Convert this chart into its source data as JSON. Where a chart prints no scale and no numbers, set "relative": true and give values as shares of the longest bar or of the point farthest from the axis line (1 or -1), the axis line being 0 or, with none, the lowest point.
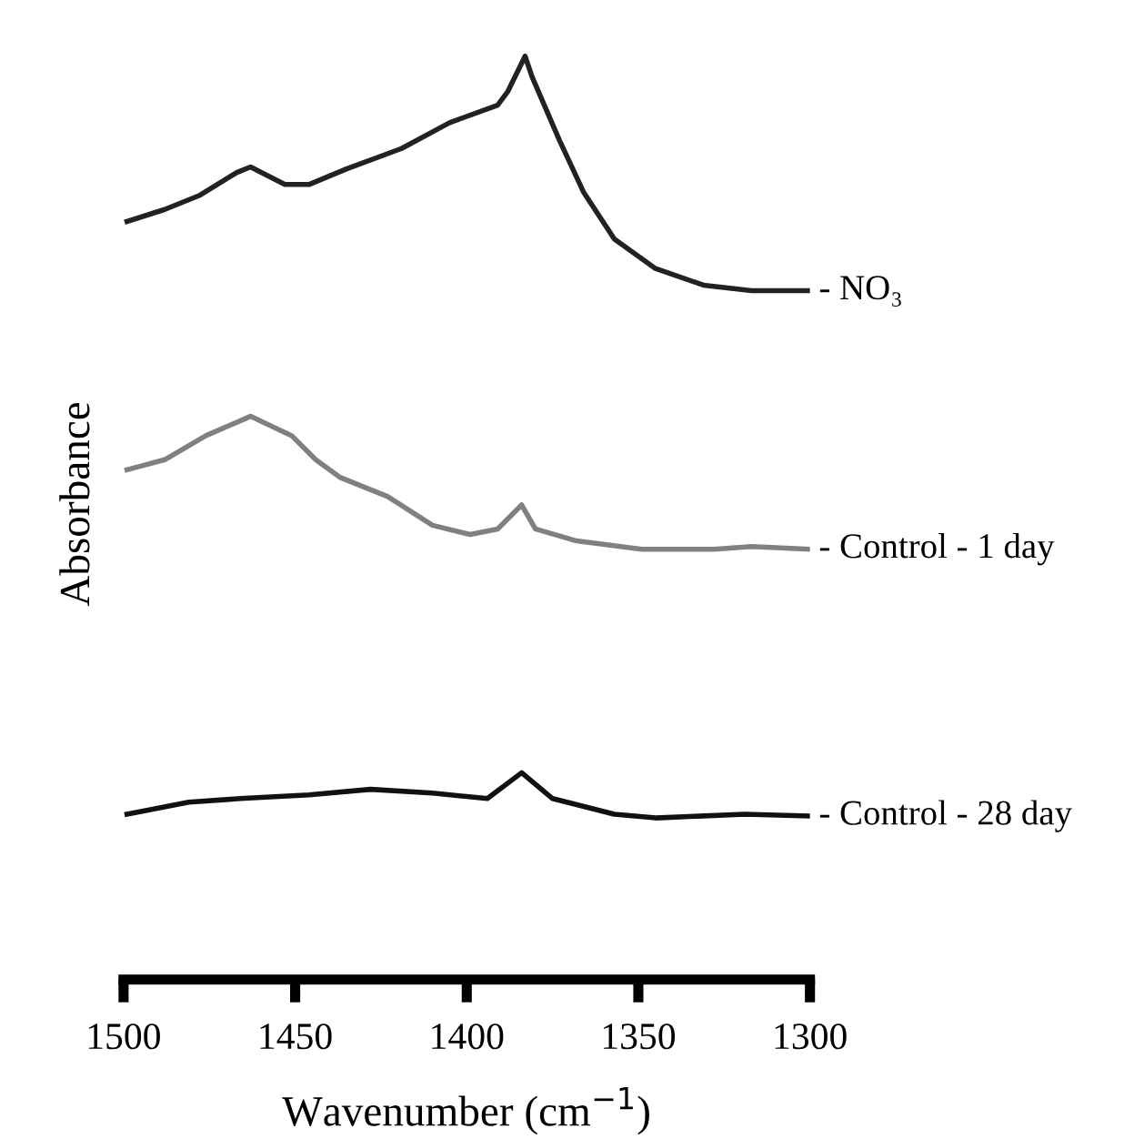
{
  "chart_data": {
    "type": "line",
    "relative": true,
    "xlabel": "Wavenumber (cm$^{−1}$)",
    "ylabel": "Absorbance",
    "xlim": [
      1500,
      1300
    ],
    "xticks": [
      1500,
      1450,
      1400,
      1350,
      1300
    ],
    "tick_labels": "x",
    "grid": false,
    "legend": false,
    "marker": "none",
    "line_style": "solid",
    "series": [
      {
        "name": "- NO₃",
        "color": "#222222",
        "x": [
          1499,
          1488,
          1478,
          1467,
          1463,
          1453,
          1446,
          1435,
          1419,
          1405,
          1391,
          1388,
          1383,
          1381,
          1373,
          1366,
          1357,
          1345,
          1331,
          1317,
          1300
        ],
        "values": [
          0.821,
          0.834,
          0.849,
          0.874,
          0.88,
          0.861,
          0.861,
          0.878,
          0.9,
          0.928,
          0.947,
          0.962,
          1.0,
          0.978,
          0.909,
          0.853,
          0.802,
          0.77,
          0.752,
          0.746,
          0.746
        ]
      },
      {
        "name": "- Control - 1 day",
        "color": "#808080",
        "x": [
          1499,
          1488,
          1476,
          1463,
          1451,
          1444,
          1437,
          1423,
          1410,
          1399,
          1391,
          1384,
          1380,
          1368,
          1349,
          1328,
          1317,
          1300
        ],
        "values": [
          0.552,
          0.563,
          0.589,
          0.61,
          0.589,
          0.563,
          0.544,
          0.523,
          0.492,
          0.482,
          0.488,
          0.514,
          0.488,
          0.475,
          0.466,
          0.466,
          0.469,
          0.466
        ]
      },
      {
        "name": "- Control - 28 day",
        "color": "#111111",
        "x": [
          1499,
          1481,
          1466,
          1446,
          1428,
          1410,
          1394,
          1384,
          1375,
          1357,
          1345,
          1319,
          1300
        ],
        "values": [
          0.179,
          0.192,
          0.196,
          0.2,
          0.206,
          0.202,
          0.196,
          0.224,
          0.196,
          0.179,
          0.175,
          0.179,
          0.177
        ]
      }
    ]
  }
}
